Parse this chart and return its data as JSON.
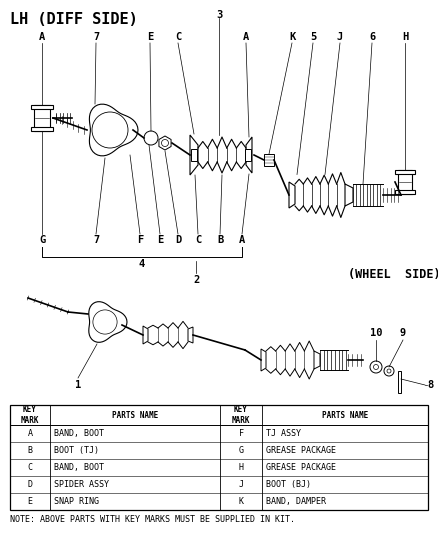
{
  "title": "LH (DIFF SIDE)",
  "wheel_side_label": "(WHEEL  SIDE)",
  "background_color": "#ffffff",
  "text_color": "#000000",
  "table_left": [
    [
      "A",
      "BAND, BOOT"
    ],
    [
      "B",
      "BOOT (TJ)"
    ],
    [
      "C",
      "BAND, BOOT"
    ],
    [
      "D",
      "SPIDER ASSY"
    ],
    [
      "E",
      "SNAP RING"
    ]
  ],
  "table_right": [
    [
      "F",
      "TJ ASSY"
    ],
    [
      "G",
      "GREASE PACKAGE"
    ],
    [
      "H",
      "GREASE PACKAGE"
    ],
    [
      "J",
      "BOOT (BJ)"
    ],
    [
      "K",
      "BAND, DAMPER"
    ]
  ],
  "note": "NOTE: ABOVE PARTS WITH KEY MARKS MUST BE SUPPLIED IN KIT."
}
